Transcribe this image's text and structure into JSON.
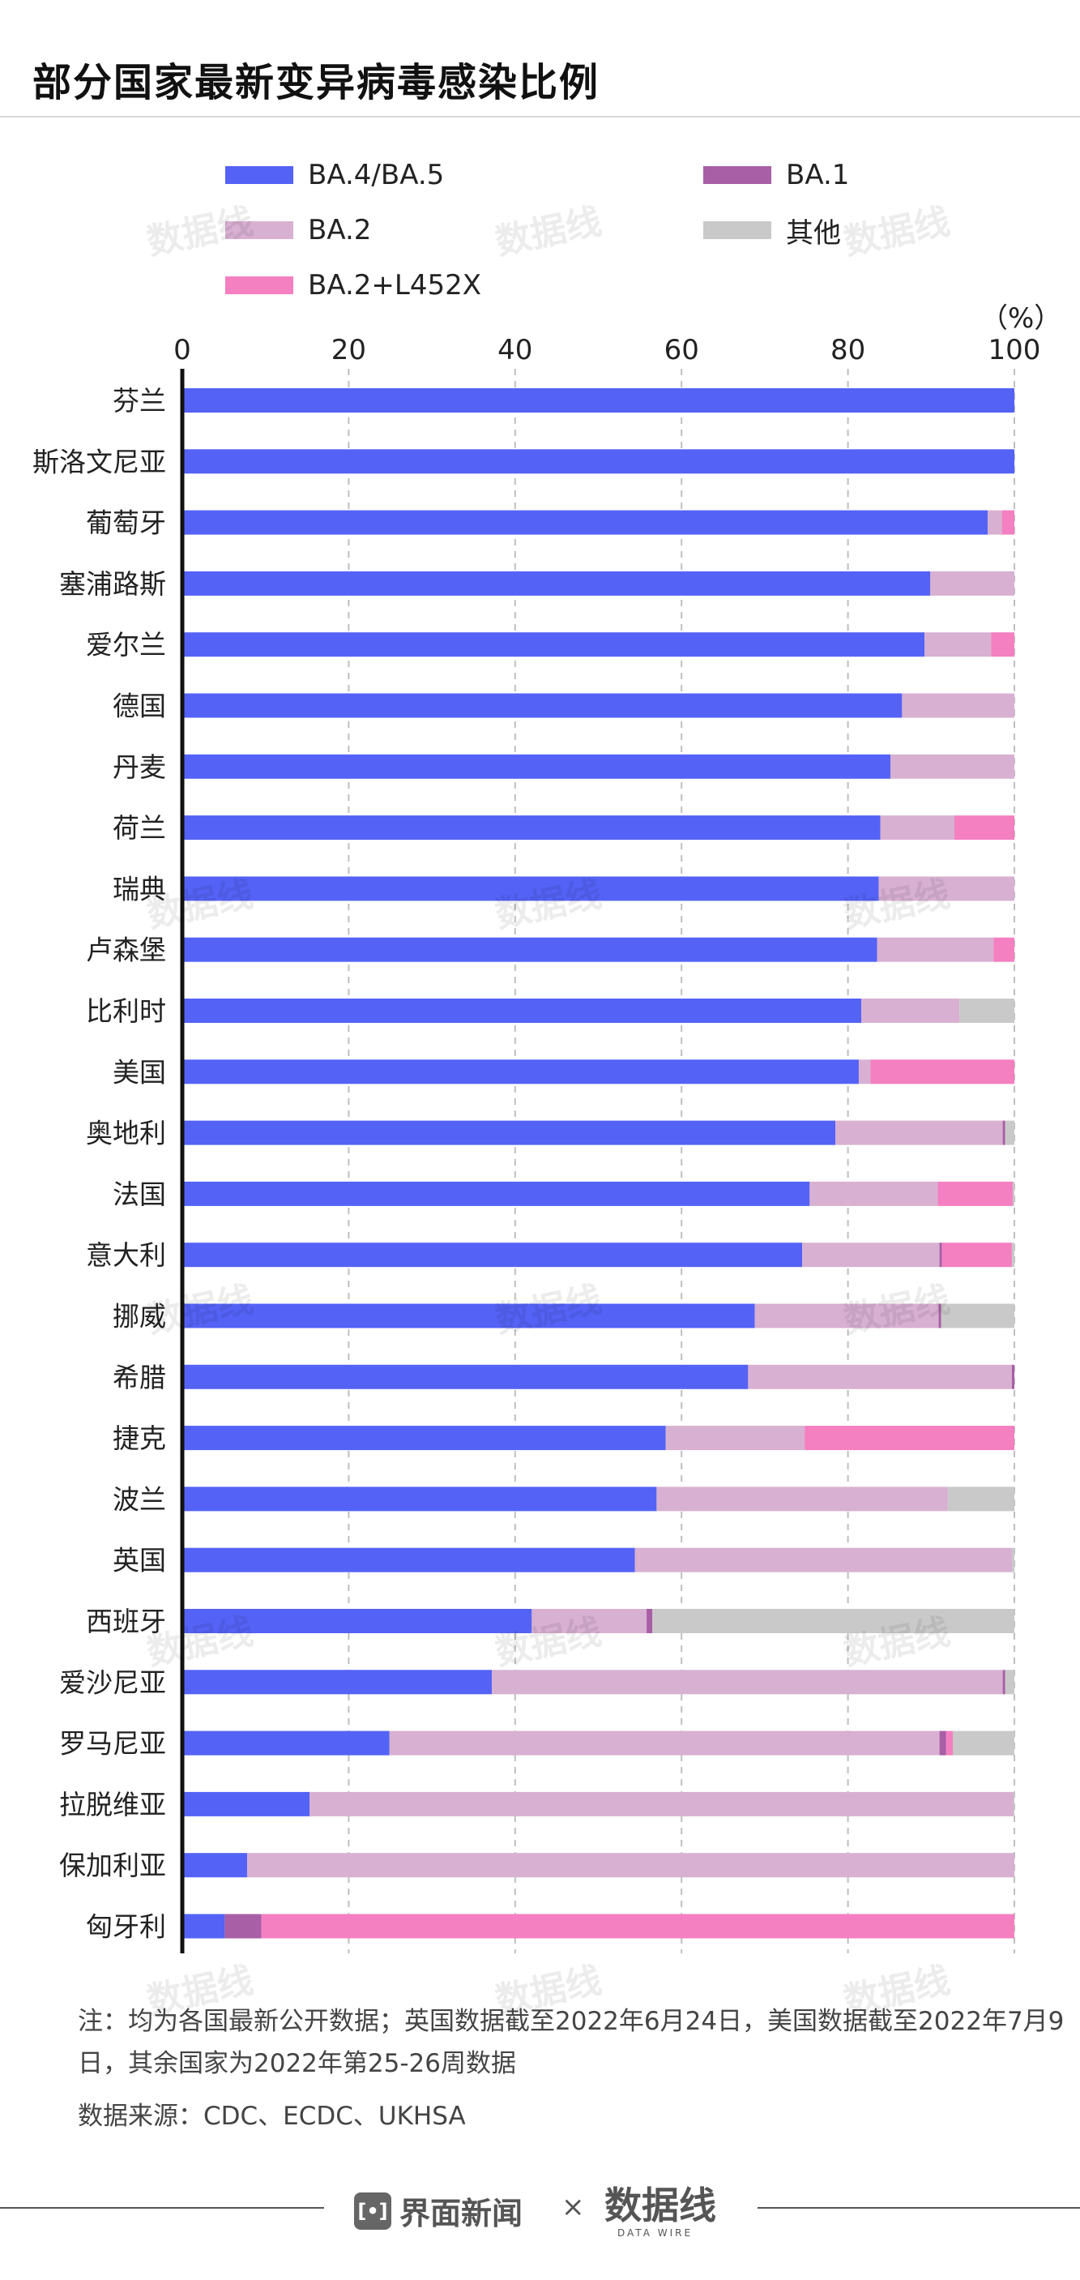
{
  "title": "部分国家最新变异病毒感染比例",
  "unit_label": "（%）",
  "colors": {
    "ba45": "#5462f5",
    "ba1": "#a85fa5",
    "ba2": "#d8b0d2",
    "other": "#c9c9c9",
    "l452x": "#f47fc1",
    "axis": "#111111",
    "grid": "#bfbfbf"
  },
  "legend": [
    {
      "key": "ba45",
      "label": "BA.4/BA.5"
    },
    {
      "key": "ba1",
      "label": "BA.1"
    },
    {
      "key": "ba2",
      "label": "BA.2"
    },
    {
      "key": "other",
      "label": "其他"
    },
    {
      "key": "l452x",
      "label": "BA.2+L452X"
    }
  ],
  "chart_data": {
    "type": "bar",
    "orientation": "horizontal",
    "stacked": true,
    "title": "部分国家最新变异病毒感染比例",
    "xlim": [
      0,
      100
    ],
    "xticks": [
      0,
      20,
      40,
      60,
      80,
      100
    ],
    "grid": true,
    "legend_position": "top",
    "categories": [
      "芬兰",
      "斯洛文尼亚",
      "葡萄牙",
      "塞浦路斯",
      "爱尔兰",
      "德国",
      "丹麦",
      "荷兰",
      "瑞典",
      "卢森堡",
      "比利时",
      "美国",
      "奥地利",
      "法国",
      "意大利",
      "挪威",
      "希腊",
      "捷克",
      "波兰",
      "英国",
      "西班牙",
      "爱沙尼亚",
      "罗马尼亚",
      "拉脱维亚",
      "保加利亚",
      "匈牙利"
    ],
    "series": [
      {
        "name": "BA.4/BA.5",
        "key": "ba45",
        "values": [
          100,
          100,
          96.8,
          89.9,
          89.2,
          86.5,
          85.1,
          83.9,
          83.7,
          83.5,
          81.6,
          81.3,
          78.5,
          75.4,
          74.5,
          68.8,
          68.0,
          58.1,
          57.0,
          54.4,
          42.0,
          37.2,
          24.9,
          15.3,
          7.8,
          5.1
        ]
      },
      {
        "name": "BA.2",
        "key": "ba2",
        "values": [
          0,
          0,
          1.7,
          10.1,
          8.0,
          13.5,
          14.9,
          8.9,
          16.3,
          14.0,
          11.8,
          1.4,
          20.1,
          15.4,
          16.5,
          22.1,
          31.7,
          16.7,
          35.0,
          45.3,
          13.8,
          61.4,
          66.1,
          84.6,
          92.2,
          0
        ]
      },
      {
        "name": "BA.1",
        "key": "ba1",
        "values": [
          0,
          0,
          0,
          0,
          0,
          0,
          0,
          0,
          0,
          0,
          0,
          0,
          0.3,
          0,
          0.3,
          0.3,
          0.3,
          0,
          0,
          0,
          0.7,
          0.3,
          0.8,
          0,
          0,
          4.4
        ]
      },
      {
        "name": "BA.2+L452X",
        "key": "l452x",
        "values": [
          0,
          0,
          1.5,
          0,
          2.8,
          0,
          0,
          7.2,
          0,
          2.5,
          0,
          17.3,
          0,
          9.0,
          8.4,
          0,
          0,
          25.2,
          0,
          0,
          0,
          0,
          0.8,
          0,
          0,
          90.5
        ]
      },
      {
        "name": "其他",
        "key": "other",
        "values": [
          0,
          0,
          0,
          0,
          0,
          0,
          0,
          0,
          0,
          0,
          6.6,
          0,
          1.1,
          0.2,
          0.3,
          8.8,
          0,
          0,
          8.0,
          0.3,
          43.5,
          1.1,
          7.4,
          0.1,
          0,
          0
        ]
      }
    ]
  },
  "note": "注：均为各国最新公开数据；英国数据截至2022年6月24日，美国数据截至2022年7月9日，其余国家为2022年第25-26周数据",
  "source": "数据来源：CDC、ECDC、UKHSA",
  "footer": {
    "logo_mark": "[•]",
    "publisher": "界面新闻",
    "separator": "×",
    "brand": "数据线",
    "brand_sub": "DATA WIRE"
  },
  "watermark_text": "数据线"
}
